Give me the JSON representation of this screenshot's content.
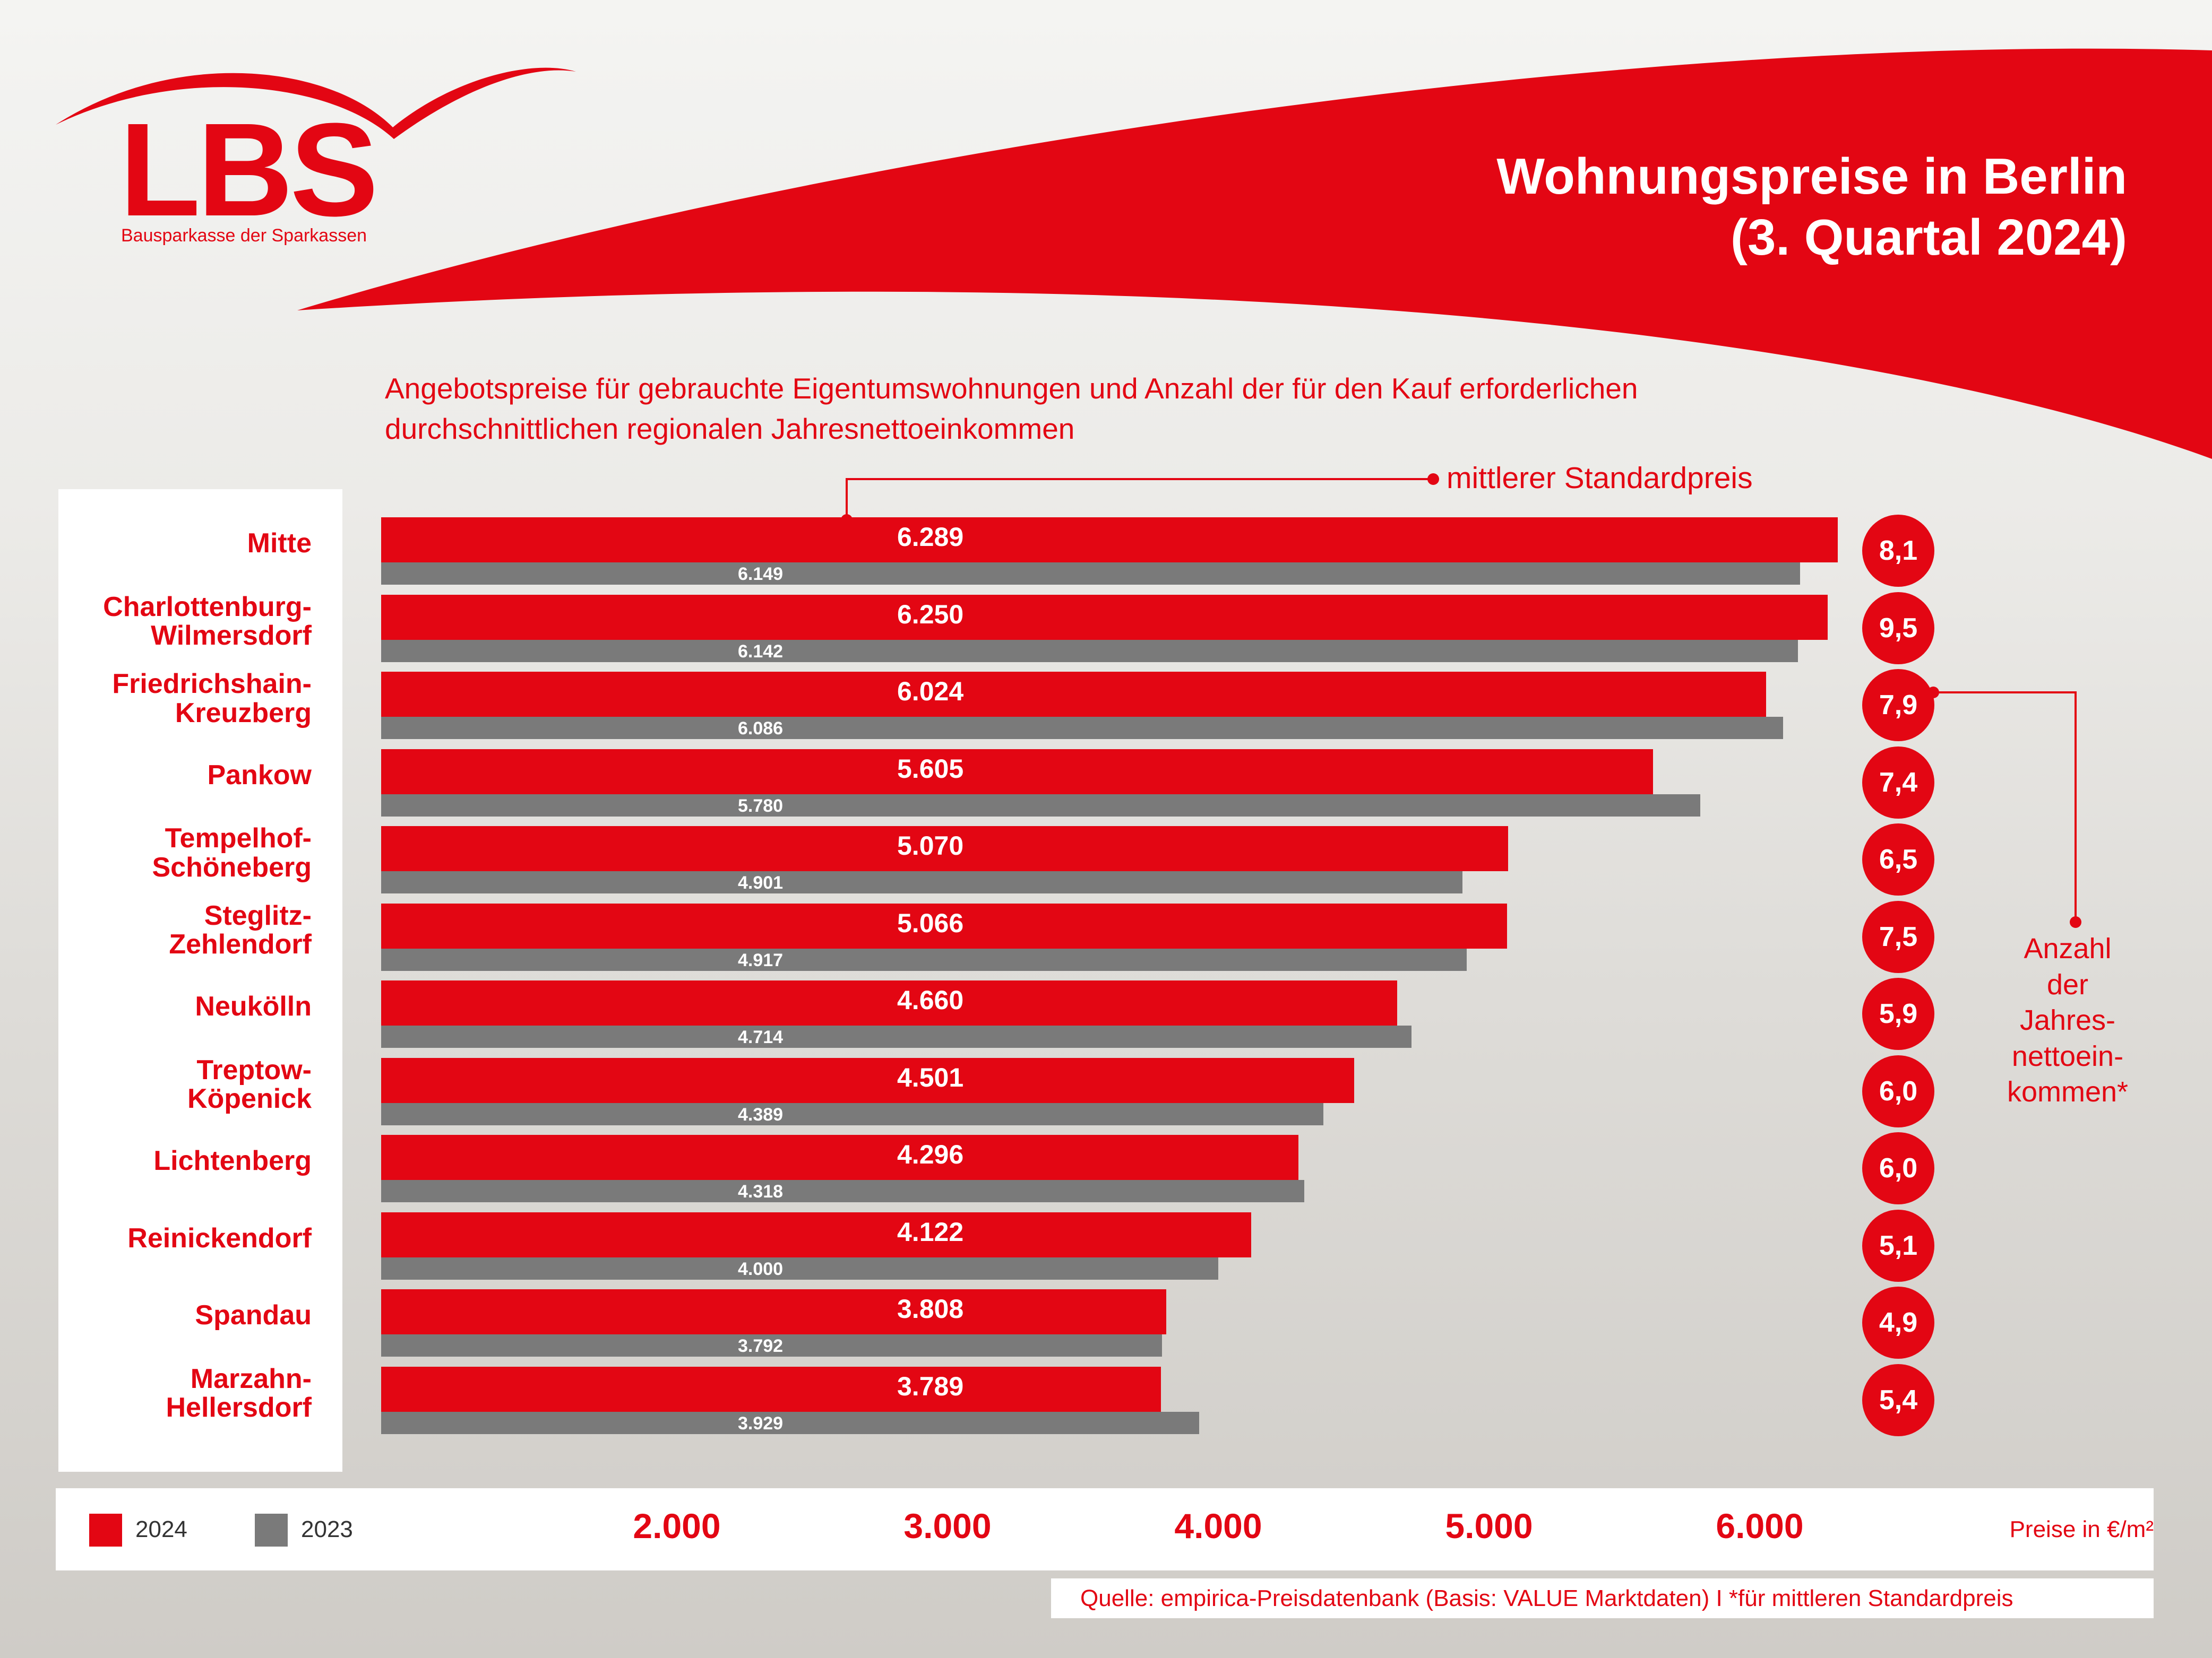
{
  "logo": {
    "text": "LBS",
    "subtitle": "Bausparkasse der Sparkassen"
  },
  "title_line1": "Wohnungspreise in Berlin",
  "title_line2": "(3. Quartal 2024)",
  "colors": {
    "accent": "#e30613",
    "series_2023": "#7a7a7a",
    "white": "#ffffff"
  },
  "annotations": {
    "standard_price": "mittlerer Standardpreis",
    "income_count": "Anzahl\nder Jahres-\nnettoein-\nkommen*"
  },
  "legend": [
    {
      "label": "2024",
      "color": "#e30613"
    },
    {
      "label": "2023",
      "color": "#7a7a7a"
    }
  ],
  "unit_label": "Preise in €/m²",
  "source": "Quelle: empirica-Preisdatenbank (Basis: VALUE Marktdaten)   I   *für mittleren Standardpreis",
  "chart_data": {
    "type": "bar",
    "orientation": "horizontal",
    "title": "Angebotspreise für gebrauchte Eigentumswohnungen und Anzahl der für den Kauf erforderlichen durchschnittlichen regionalen Jahresnettoeinkommen",
    "categories": [
      "Mitte",
      "Charlottenburg-\nWilmersdorf",
      "Friedrichshain-\nKreuzberg",
      "Pankow",
      "Tempelhof-\nSchöneberg",
      "Steglitz-\nZehlendorf",
      "Neukölln",
      "Treptow-\nKöpenick",
      "Lichtenberg",
      "Reinickendorf",
      "Spandau",
      "Marzahn-\nHellersdorf"
    ],
    "series": [
      {
        "name": "2024",
        "values": [
          6289,
          6250,
          6024,
          5605,
          5070,
          5066,
          4660,
          4501,
          4296,
          4122,
          3808,
          3789
        ],
        "labels": [
          "6.289",
          "6.250",
          "6.024",
          "5.605",
          "5.070",
          "5.066",
          "4.660",
          "4.501",
          "4.296",
          "4.122",
          "3.808",
          "3.789"
        ]
      },
      {
        "name": "2023",
        "values": [
          6149,
          6142,
          6086,
          5780,
          4901,
          4917,
          4714,
          4389,
          4318,
          4000,
          3792,
          3929
        ],
        "labels": [
          "6.149",
          "6.142",
          "6.086",
          "5.780",
          "4.901",
          "4.917",
          "4.714",
          "4.389",
          "4.318",
          "4.000",
          "3.792",
          "3.929"
        ]
      }
    ],
    "income_multiples": [
      "8,1",
      "9,5",
      "7,9",
      "7,4",
      "6,5",
      "7,5",
      "5,9",
      "6,0",
      "6,0",
      "5,1",
      "4,9",
      "5,4"
    ],
    "xticks": [
      "2.000",
      "3.000",
      "4.000",
      "5.000",
      "6.000"
    ],
    "xtick_values": [
      2000,
      3000,
      4000,
      5000,
      6000
    ],
    "xlim": [
      1000,
      6500
    ],
    "xlabel": "Preise in €/m²",
    "legend_position": "bottom-left"
  }
}
